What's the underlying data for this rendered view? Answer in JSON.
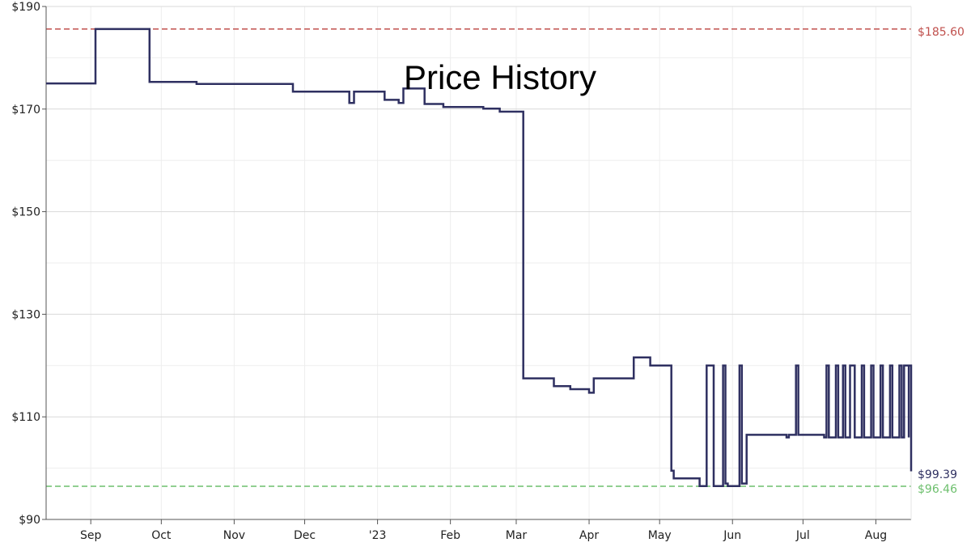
{
  "chart_data": {
    "type": "line",
    "line_style": "step",
    "title": "Price History",
    "colors": {
      "series": "#2f3061",
      "high": "#c0504d",
      "low": "#6dbf6d",
      "grid": "#d9d9d9",
      "grid_minor": "#eeeeee",
      "axis": "#555555"
    },
    "x_axis": {
      "start": "2022-08-13",
      "end": "2023-08-16",
      "ticks": [
        {
          "date": "2022-09-01",
          "label": "Sep"
        },
        {
          "date": "2022-10-01",
          "label": "Oct"
        },
        {
          "date": "2022-11-01",
          "label": "Nov"
        },
        {
          "date": "2022-12-01",
          "label": "Dec"
        },
        {
          "date": "2023-01-01",
          "label": "'23"
        },
        {
          "date": "2023-02-01",
          "label": "Feb"
        },
        {
          "date": "2023-03-01",
          "label": "Mar"
        },
        {
          "date": "2023-04-01",
          "label": "Apr"
        },
        {
          "date": "2023-05-01",
          "label": "May"
        },
        {
          "date": "2023-06-01",
          "label": "Jun"
        },
        {
          "date": "2023-07-01",
          "label": "Jul"
        },
        {
          "date": "2023-08-01",
          "label": "Aug"
        }
      ]
    },
    "y_axis": {
      "ylim": [
        90,
        190
      ],
      "ticks": [
        {
          "value": 90,
          "label": "$90"
        },
        {
          "value": 110,
          "label": "$110"
        },
        {
          "value": 130,
          "label": "$130"
        },
        {
          "value": 150,
          "label": "$150"
        },
        {
          "value": 170,
          "label": "$170"
        },
        {
          "value": 190,
          "label": "$190"
        }
      ]
    },
    "reference_lines": [
      {
        "name": "high",
        "value": 185.6,
        "label": "$185.60",
        "color": "#c0504d"
      },
      {
        "name": "low",
        "value": 96.46,
        "label": "$96.46",
        "color": "#6dbf6d"
      }
    ],
    "current_label": "$99.39",
    "series": [
      {
        "points": [
          [
            "2022-08-13",
            175.0
          ],
          [
            "2022-09-03",
            185.6
          ],
          [
            "2022-09-26",
            175.3
          ],
          [
            "2022-10-16",
            174.9
          ],
          [
            "2022-11-26",
            173.4
          ],
          [
            "2022-12-20",
            171.2
          ],
          [
            "2022-12-22",
            173.4
          ],
          [
            "2023-01-04",
            171.8
          ],
          [
            "2023-01-10",
            171.2
          ],
          [
            "2023-01-12",
            174.0
          ],
          [
            "2023-01-21",
            171.0
          ],
          [
            "2023-01-29",
            170.4
          ],
          [
            "2023-02-15",
            170.1
          ],
          [
            "2023-02-22",
            169.5
          ],
          [
            "2023-03-04",
            117.5
          ],
          [
            "2023-03-17",
            116.0
          ],
          [
            "2023-03-24",
            115.4
          ],
          [
            "2023-04-01",
            114.7
          ],
          [
            "2023-04-03",
            117.5
          ],
          [
            "2023-04-20",
            121.6
          ],
          [
            "2023-04-27",
            120.0
          ],
          [
            "2023-05-06",
            99.5
          ],
          [
            "2023-05-07",
            98.0
          ],
          [
            "2023-05-18",
            96.5
          ],
          [
            "2023-05-21",
            120.0
          ],
          [
            "2023-05-24",
            96.5
          ],
          [
            "2023-05-28",
            120.0
          ],
          [
            "2023-05-29",
            97.0
          ],
          [
            "2023-05-30",
            96.5
          ],
          [
            "2023-06-04",
            120.0
          ],
          [
            "2023-06-05",
            97.0
          ],
          [
            "2023-06-07",
            106.5
          ],
          [
            "2023-06-24",
            106.0
          ],
          [
            "2023-06-25",
            106.5
          ],
          [
            "2023-06-28",
            120.0
          ],
          [
            "2023-06-29",
            106.5
          ],
          [
            "2023-07-10",
            106.0
          ],
          [
            "2023-07-11",
            120.0
          ],
          [
            "2023-07-12",
            106.0
          ],
          [
            "2023-07-15",
            120.0
          ],
          [
            "2023-07-16",
            106.0
          ],
          [
            "2023-07-18",
            120.0
          ],
          [
            "2023-07-19",
            106.0
          ],
          [
            "2023-07-21",
            120.0
          ],
          [
            "2023-07-23",
            106.0
          ],
          [
            "2023-07-26",
            120.0
          ],
          [
            "2023-07-27",
            106.0
          ],
          [
            "2023-07-30",
            120.0
          ],
          [
            "2023-07-31",
            106.0
          ],
          [
            "2023-08-03",
            120.0
          ],
          [
            "2023-08-04",
            106.0
          ],
          [
            "2023-08-07",
            120.0
          ],
          [
            "2023-08-08",
            106.0
          ],
          [
            "2023-08-11",
            120.0
          ],
          [
            "2023-08-12",
            106.0
          ],
          [
            "2023-08-13",
            120.0
          ],
          [
            "2023-08-15",
            106.0
          ],
          [
            "2023-08-15",
            120.0
          ],
          [
            "2023-08-16",
            99.39
          ]
        ]
      }
    ]
  }
}
